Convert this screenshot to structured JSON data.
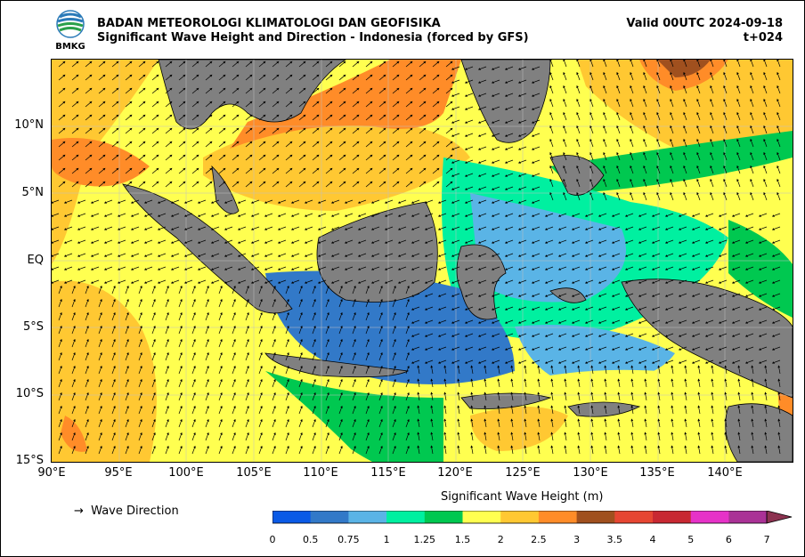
{
  "header": {
    "org": "BADAN METEOROLOGI KLIMATOLOGI DAN GEOFISIKA",
    "subtitle": "Significant Wave Height and Direction - Indonesia (forced by GFS)",
    "valid": "Valid 00UTC 2024-09-18",
    "lead": "t+024",
    "logo_text": "BMKG"
  },
  "map": {
    "lat_labels": [
      "10°N",
      "5°N",
      "EQ",
      "5°S",
      "10°S",
      "15°S"
    ],
    "lon_labels": [
      "90°E",
      "95°E",
      "100°E",
      "105°E",
      "110°E",
      "115°E",
      "120°E",
      "125°E",
      "130°E",
      "135°E",
      "140°E"
    ],
    "lon_range": [
      90,
      145
    ],
    "lat_range": [
      -15,
      15
    ],
    "land_color": "#808080"
  },
  "legend": {
    "arrow_label": "Wave Direction",
    "arrow_icon": "→"
  },
  "colorbar": {
    "title": "Significant Wave Height (m)",
    "ticks": [
      "0",
      "0.5",
      "0.75",
      "1",
      "1.25",
      "1.5",
      "2",
      "2.5",
      "3",
      "3.5",
      "4",
      "5",
      "6",
      "7"
    ],
    "colors": [
      "#0a5ae6",
      "#3279c8",
      "#5ab4e6",
      "#00f0a0",
      "#00c850",
      "#ffff50",
      "#ffc832",
      "#ff8c28",
      "#a0501e",
      "#e64632",
      "#c82832",
      "#e632c8",
      "#aa3296",
      "#8c3250"
    ]
  }
}
